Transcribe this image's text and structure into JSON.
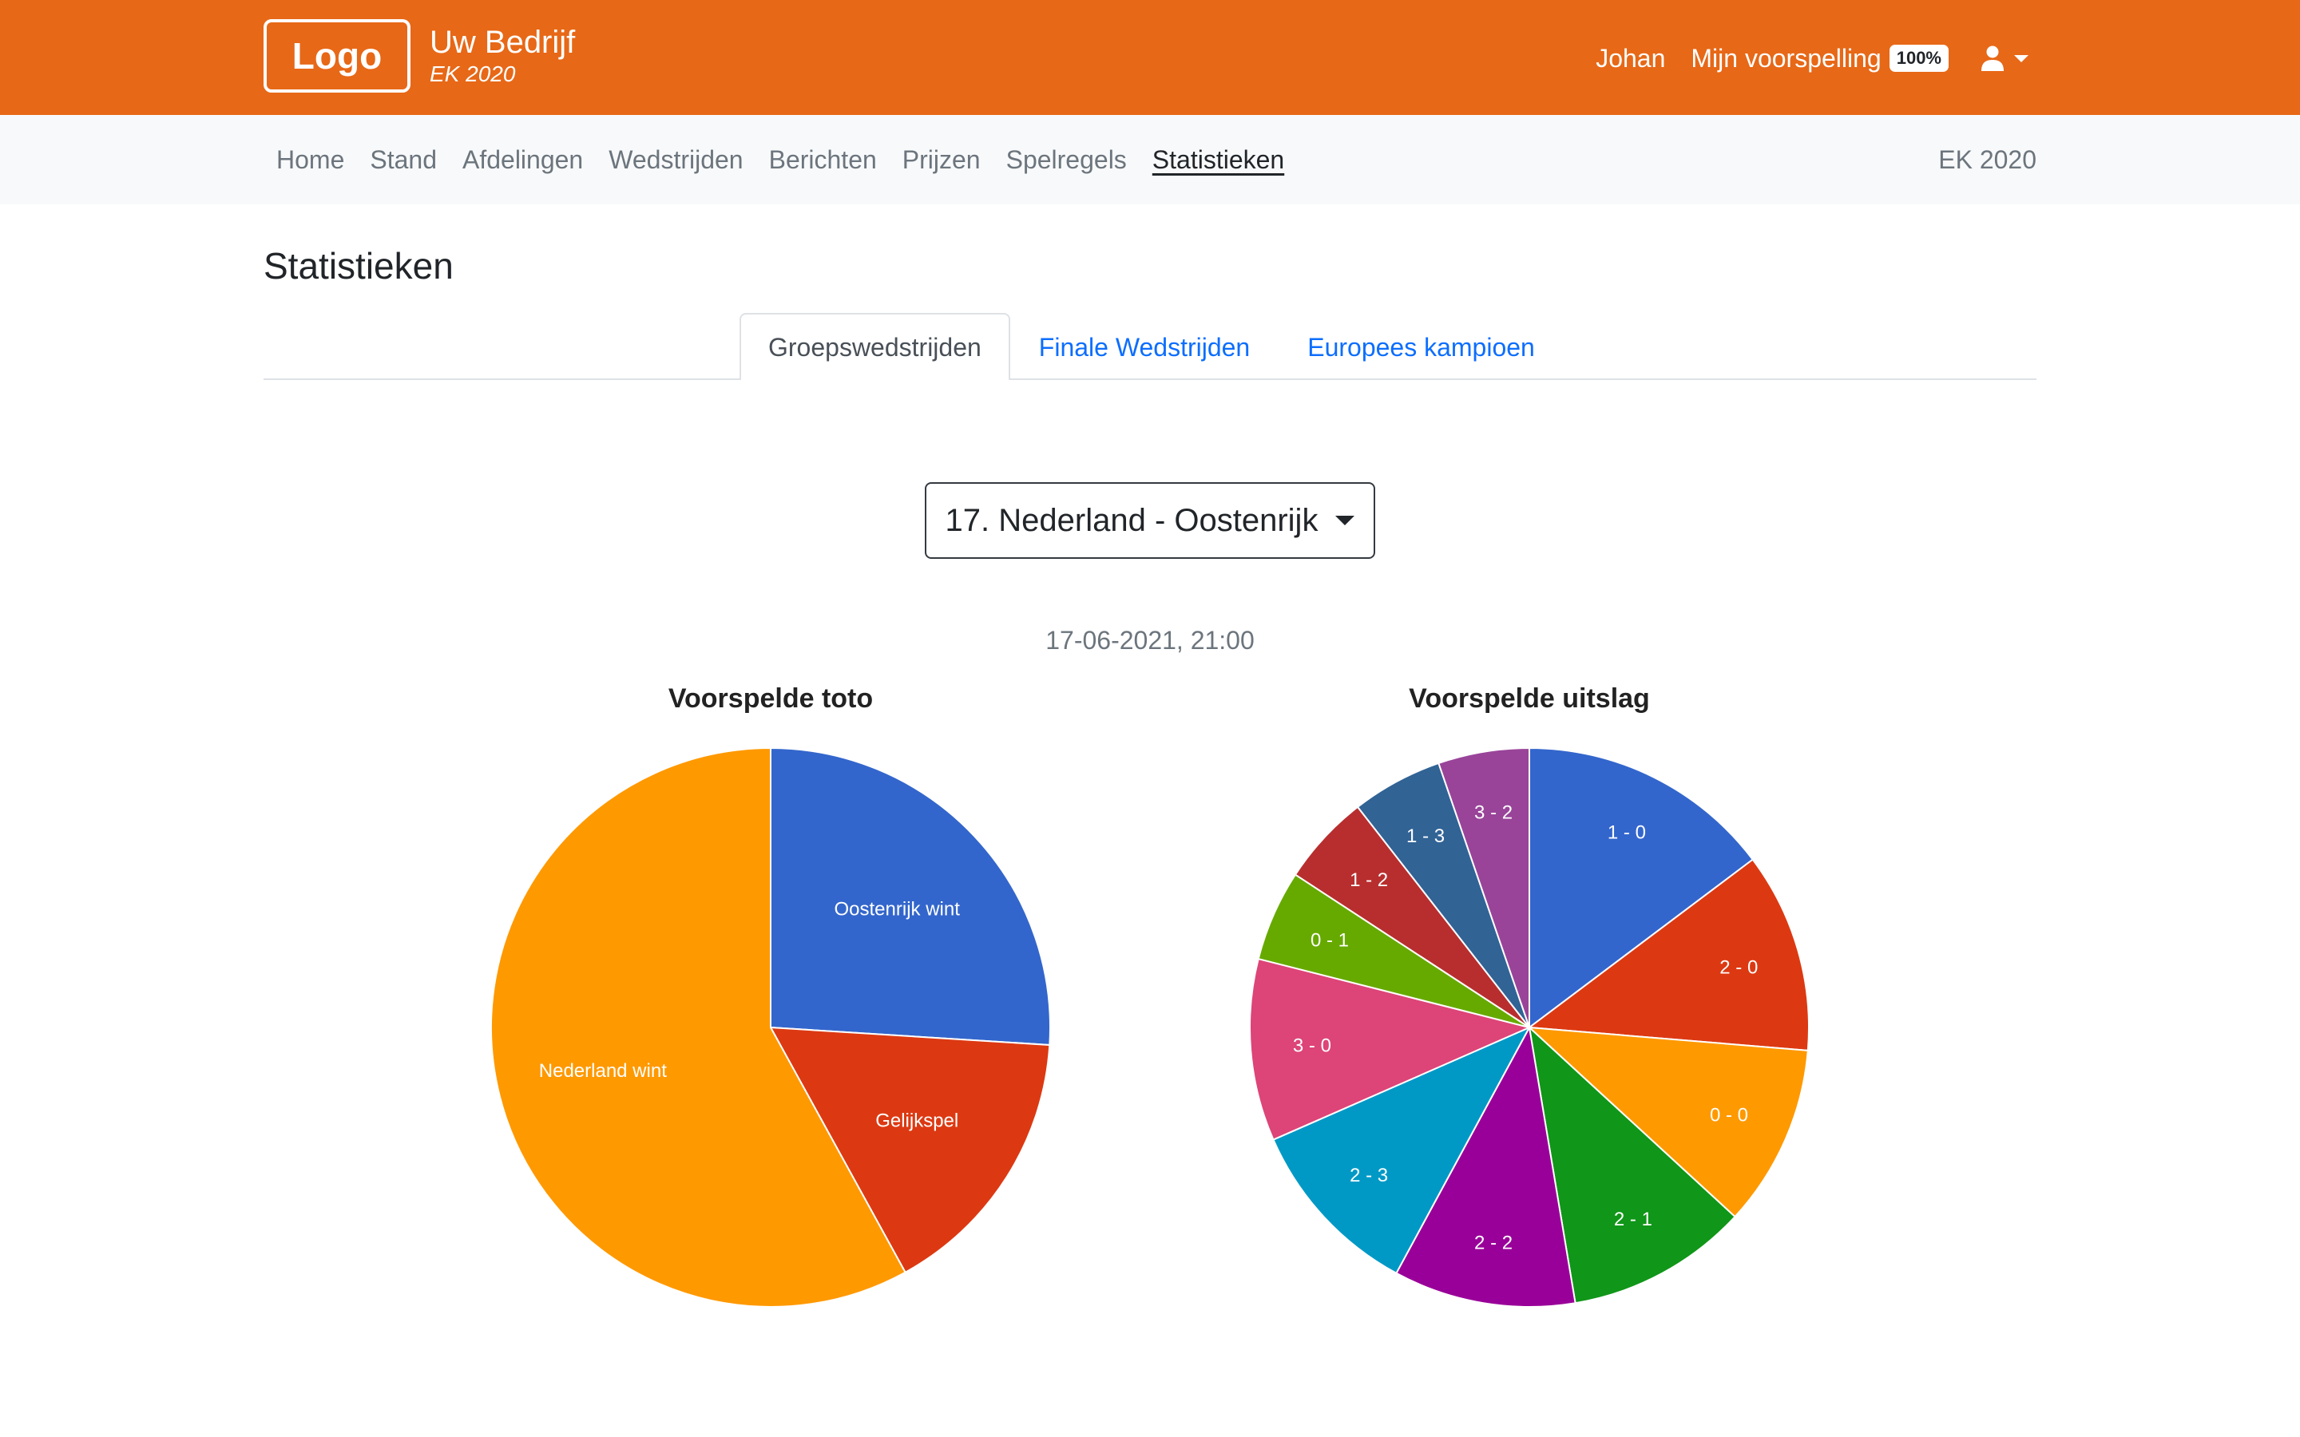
{
  "header": {
    "logo": "Logo",
    "company_name": "Uw Bedrijf",
    "company_sub": "EK 2020",
    "user_name": "Johan",
    "prediction_link": "Mijn voorspelling",
    "prediction_badge": "100%",
    "user_icon": "user-icon",
    "colors": {
      "bar": "#e76817"
    }
  },
  "nav": {
    "items": [
      {
        "label": "Home",
        "active": false
      },
      {
        "label": "Stand",
        "active": false
      },
      {
        "label": "Afdelingen",
        "active": false
      },
      {
        "label": "Wedstrijden",
        "active": false
      },
      {
        "label": "Berichten",
        "active": false
      },
      {
        "label": "Prijzen",
        "active": false
      },
      {
        "label": "Spelregels",
        "active": false
      },
      {
        "label": "Statistieken",
        "active": true
      }
    ],
    "right_label": "EK 2020"
  },
  "page": {
    "title": "Statistieken",
    "tabs": [
      {
        "label": "Groepswedstrijden",
        "active": true
      },
      {
        "label": "Finale Wedstrijden",
        "active": false
      },
      {
        "label": "Europees kampioen",
        "active": false
      }
    ],
    "match_select": "17. Nederland - Oostenrijk",
    "match_date": "17-06-2021, 21:00"
  },
  "chart_data": [
    {
      "type": "pie",
      "title": "Voorspelde toto",
      "slices": [
        {
          "label": "Oostenrijk wint",
          "value": 26,
          "color": "#3366cc"
        },
        {
          "label": "Gelijkspel",
          "value": 16,
          "color": "#dc3912"
        },
        {
          "label": "Nederland wint",
          "value": 58,
          "color": "#ff9900"
        }
      ]
    },
    {
      "type": "pie",
      "title": "Voorspelde uitslag",
      "slices": [
        {
          "label": "1 - 0",
          "value": 14,
          "color": "#3366cc"
        },
        {
          "label": "2 - 0",
          "value": 11,
          "color": "#dc3912"
        },
        {
          "label": "0 - 0",
          "value": 10,
          "color": "#ff9900"
        },
        {
          "label": "2 - 1",
          "value": 10,
          "color": "#109618"
        },
        {
          "label": "2 - 2",
          "value": 10,
          "color": "#990099"
        },
        {
          "label": "2 - 3",
          "value": 10,
          "color": "#0099c6"
        },
        {
          "label": "3 - 0",
          "value": 10,
          "color": "#dd4477"
        },
        {
          "label": "0 - 1",
          "value": 5,
          "color": "#66aa00"
        },
        {
          "label": "1 - 2",
          "value": 5,
          "color": "#b82e2e"
        },
        {
          "label": "1 - 3",
          "value": 5,
          "color": "#316395"
        },
        {
          "label": "3 - 2",
          "value": 5,
          "color": "#994499"
        }
      ]
    }
  ]
}
